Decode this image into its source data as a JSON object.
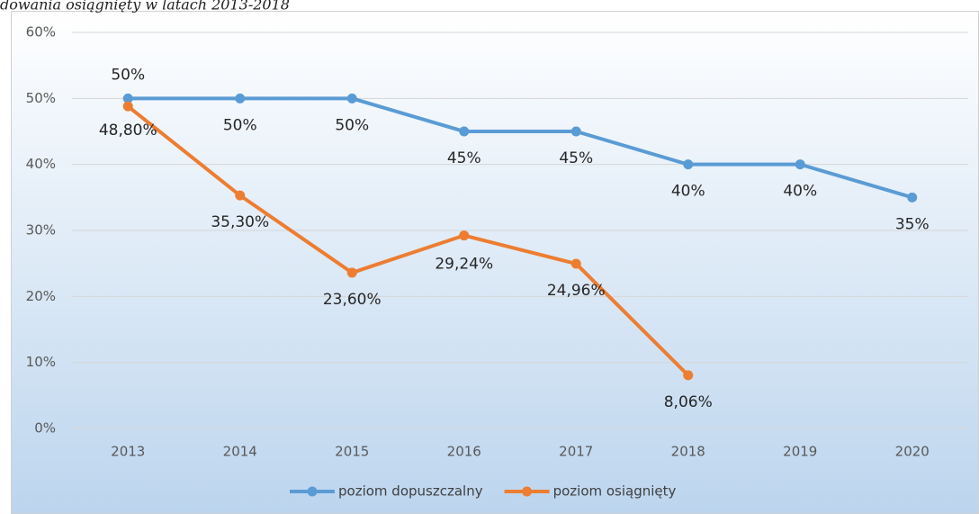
{
  "chart_data": {
    "type": "line",
    "title": "dowania osiągnięty w latach 2013-2018",
    "categories": [
      "2013",
      "2014",
      "2015",
      "2016",
      "2017",
      "2018",
      "2019",
      "2020"
    ],
    "series": [
      {
        "name": "poziom dopuszczalny",
        "color": "#5b9bd5",
        "values": [
          50,
          50,
          50,
          45,
          45,
          40,
          40,
          35
        ],
        "value_labels": [
          "50%",
          "50%",
          "50%",
          "45%",
          "45%",
          "40%",
          "40%",
          "35%"
        ]
      },
      {
        "name": "poziom osiągnięty",
        "color": "#ed7d31",
        "values": [
          48.8,
          35.3,
          23.6,
          29.24,
          24.96,
          8.06,
          null,
          null
        ],
        "value_labels": [
          "48,80%",
          "35,30%",
          "23,60%",
          "29,24%",
          "24,96%",
          "8,06%",
          null,
          null
        ]
      }
    ],
    "ylim": [
      0,
      60
    ],
    "yticks": [
      {
        "value": 0,
        "label": "0%"
      },
      {
        "value": 10,
        "label": "10%"
      },
      {
        "value": 20,
        "label": "20%"
      },
      {
        "value": 30,
        "label": "30%"
      },
      {
        "value": 40,
        "label": "40%"
      },
      {
        "value": 50,
        "label": "50%"
      },
      {
        "value": 60,
        "label": "60%"
      }
    ],
    "grid": true,
    "legend": "bottom"
  }
}
